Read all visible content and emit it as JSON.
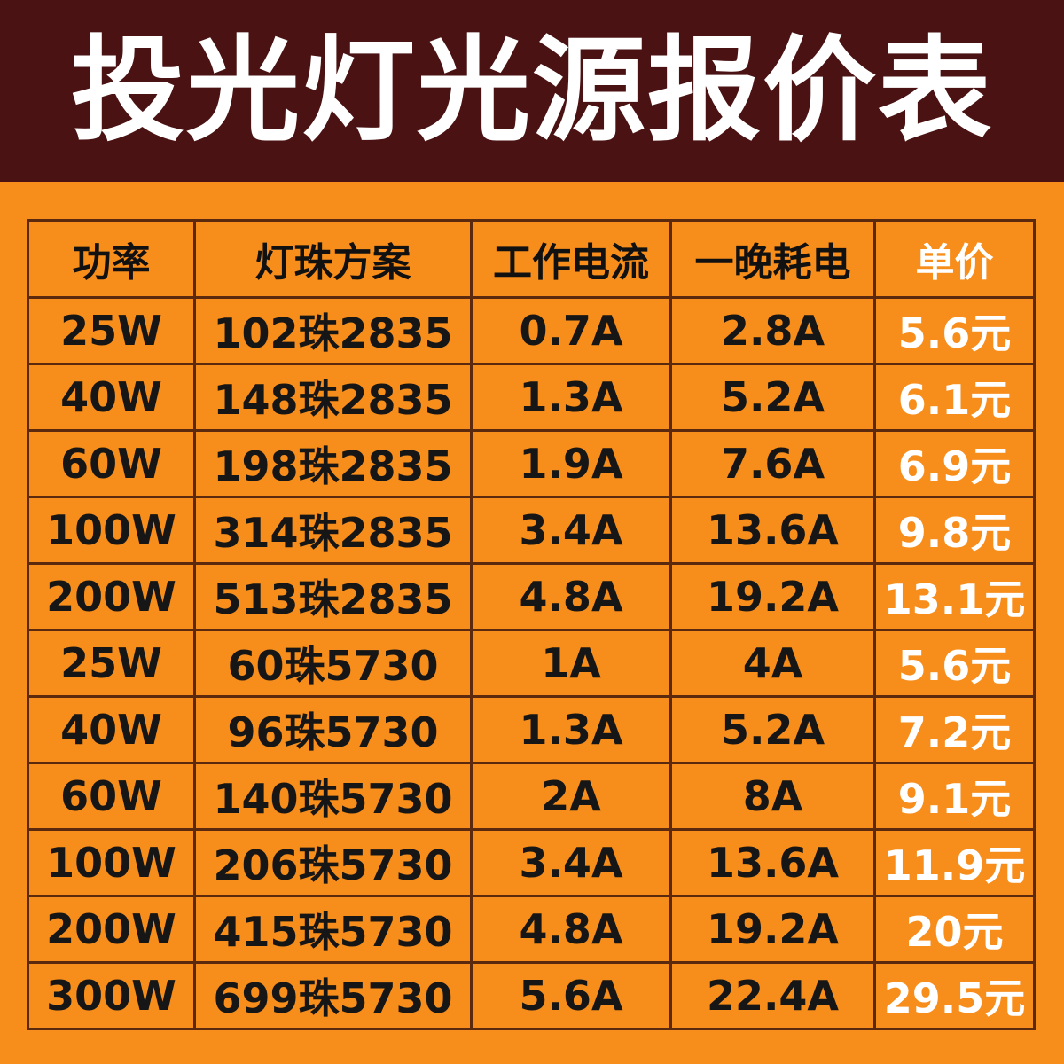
{
  "header": {
    "title": "投光灯光源报价表"
  },
  "table": {
    "columns": [
      "功率",
      "灯珠方案",
      "工作电流",
      "一晚耗电",
      "单价"
    ],
    "rows": [
      [
        "25W",
        "102珠2835",
        "0.7A",
        "2.8A",
        "5.6元"
      ],
      [
        "40W",
        "148珠2835",
        "1.3A",
        "5.2A",
        "6.1元"
      ],
      [
        "60W",
        "198珠2835",
        "1.9A",
        "7.6A",
        "6.9元"
      ],
      [
        "100W",
        "314珠2835",
        "3.4A",
        "13.6A",
        "9.8元"
      ],
      [
        "200W",
        "513珠2835",
        "4.8A",
        "19.2A",
        "13.1元"
      ],
      [
        "25W",
        "60珠5730",
        "1A",
        "4A",
        "5.6元"
      ],
      [
        "40W",
        "96珠5730",
        "1.3A",
        "5.2A",
        "7.2元"
      ],
      [
        "60W",
        "140珠5730",
        "2A",
        "8A",
        "9.1元"
      ],
      [
        "100W",
        "206珠5730",
        "3.4A",
        "13.6A",
        "11.9元"
      ],
      [
        "200W",
        "415珠5730",
        "4.8A",
        "19.2A",
        "20元"
      ],
      [
        "300W",
        "699珠5730",
        "5.6A",
        "22.4A",
        "29.5元"
      ]
    ]
  }
}
